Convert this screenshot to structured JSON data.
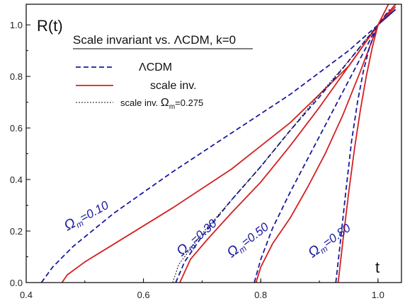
{
  "chart_data": {
    "type": "line",
    "title": "Scale invariant vs.  ΛCDM, k=0",
    "xlabel": "t",
    "ylabel": "R(t)",
    "xlim": [
      0.4,
      1.04
    ],
    "ylim": [
      0.0,
      1.08
    ],
    "xticks": [
      "0.4",
      "0.6",
      "0.8",
      "1.0"
    ],
    "yticks": [
      "0.0",
      "0.2",
      "0.4",
      "0.6",
      "0.8",
      "1.0"
    ],
    "grid": false,
    "legend_position": "top-left",
    "colors": {
      "lcdm": "#1a1aa0",
      "scale_inv": "#d42020",
      "special": "#111111"
    },
    "legend": [
      {
        "key": "lcdm",
        "label": "ΛCDM",
        "style": "dashed"
      },
      {
        "key": "scale_inv",
        "label": "scale inv.",
        "style": "solid"
      },
      {
        "key": "special",
        "label_prefix": "scale inv. ",
        "label_symbol": "Ω",
        "label_sub": "m",
        "label_suffix": "=0.275",
        "style": "dotted"
      }
    ],
    "annotations": [
      {
        "symbol": "Ω",
        "sub": "m",
        "value": "=0.10",
        "x": 0.47,
        "y": 0.2,
        "angle": -29
      },
      {
        "symbol": "Ω",
        "sub": "m",
        "value": "=0.30",
        "x": 0.665,
        "y": 0.1,
        "angle": -42
      },
      {
        "symbol": "Ω",
        "sub": "m",
        "value": "=0.50",
        "x": 0.75,
        "y": 0.095,
        "angle": -38
      },
      {
        "symbol": "Ω",
        "sub": "m",
        "value": "=0.80",
        "x": 0.888,
        "y": 0.095,
        "angle": -36
      }
    ],
    "series": [
      {
        "key": "lcdm",
        "omega": 0.1,
        "x": [
          0.426,
          0.445,
          0.48,
          0.55,
          0.65,
          0.75,
          0.85,
          0.95,
          1.0,
          1.03
        ],
        "y": [
          0.0,
          0.06,
          0.14,
          0.27,
          0.43,
          0.58,
          0.73,
          0.9,
          1.0,
          1.06
        ]
      },
      {
        "key": "scale_inv",
        "omega": 0.1,
        "x": [
          0.461,
          0.47,
          0.5,
          0.55,
          0.65,
          0.75,
          0.85,
          0.95,
          1.0,
          1.03
        ],
        "y": [
          0.0,
          0.03,
          0.08,
          0.15,
          0.29,
          0.44,
          0.62,
          0.84,
          1.0,
          1.07
        ]
      },
      {
        "key": "lcdm",
        "omega": 0.3,
        "x": [
          0.655,
          0.67,
          0.7,
          0.75,
          0.8,
          0.85,
          0.9,
          0.95,
          1.0,
          1.03
        ],
        "y": [
          0.0,
          0.08,
          0.18,
          0.32,
          0.45,
          0.59,
          0.72,
          0.86,
          1.0,
          1.06
        ]
      },
      {
        "key": "scale_inv",
        "omega": 0.3,
        "x": [
          0.662,
          0.68,
          0.71,
          0.75,
          0.8,
          0.85,
          0.9,
          0.95,
          1.0,
          1.03
        ],
        "y": [
          0.0,
          0.09,
          0.17,
          0.27,
          0.39,
          0.53,
          0.68,
          0.84,
          1.0,
          1.08
        ]
      },
      {
        "key": "special",
        "omega": 0.275,
        "x": [
          0.65,
          0.66,
          0.7,
          0.75,
          0.8,
          0.85,
          0.9,
          0.95,
          1.0
        ],
        "y": [
          0.0,
          0.07,
          0.19,
          0.32,
          0.45,
          0.59,
          0.73,
          0.86,
          1.0
        ]
      },
      {
        "key": "lcdm",
        "omega": 0.5,
        "x": [
          0.789,
          0.8,
          0.82,
          0.85,
          0.88,
          0.91,
          0.94,
          0.97,
          1.0,
          1.03
        ],
        "y": [
          0.0,
          0.09,
          0.21,
          0.35,
          0.48,
          0.61,
          0.74,
          0.87,
          1.0,
          1.06
        ]
      },
      {
        "key": "scale_inv",
        "omega": 0.5,
        "x": [
          0.792,
          0.8,
          0.82,
          0.85,
          0.88,
          0.91,
          0.94,
          0.97,
          1.0,
          1.03
        ],
        "y": [
          0.0,
          0.06,
          0.15,
          0.25,
          0.37,
          0.5,
          0.65,
          0.82,
          1.0,
          1.08
        ]
      },
      {
        "key": "lcdm",
        "omega": 0.8,
        "x": [
          0.928,
          0.935,
          0.945,
          0.955,
          0.965,
          0.975,
          0.985,
          0.995,
          1.0,
          1.02
        ],
        "y": [
          0.0,
          0.14,
          0.35,
          0.55,
          0.7,
          0.82,
          0.91,
          0.97,
          1.0,
          1.06
        ]
      },
      {
        "key": "scale_inv",
        "omega": 0.8,
        "x": [
          0.932,
          0.94,
          0.95,
          0.96,
          0.97,
          0.98,
          0.99,
          1.0,
          1.02
        ],
        "y": [
          0.0,
          0.16,
          0.35,
          0.52,
          0.67,
          0.8,
          0.91,
          1.0,
          1.09
        ]
      }
    ]
  }
}
